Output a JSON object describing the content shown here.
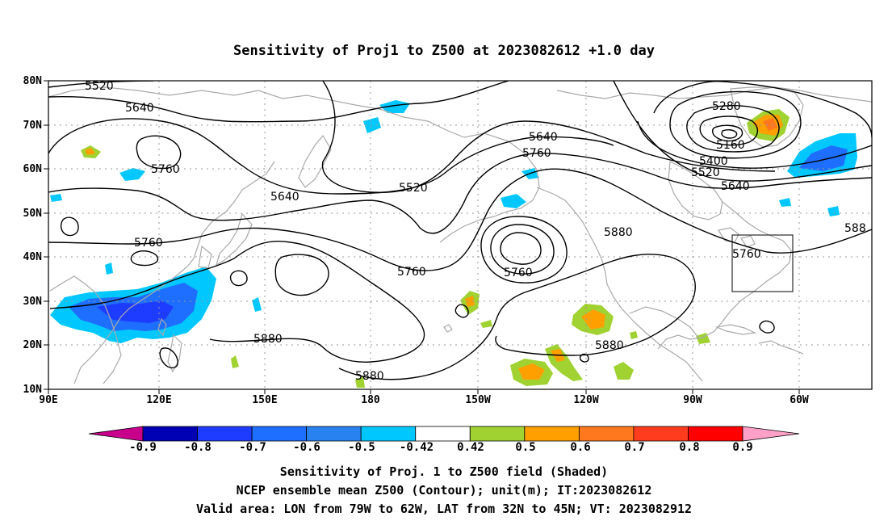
{
  "title": "Sensitivity of Proj1 to Z500 at 2023082612 +1.0 day",
  "lon_labels": [
    "90E",
    "120E",
    "150E",
    "180",
    "150W",
    "120W",
    "90W",
    "60W"
  ],
  "lat_labels": [
    "80N",
    "70N",
    "60N",
    "50N",
    "40N",
    "30N",
    "20N",
    "10N"
  ],
  "contour_labels": [
    "5520",
    "5640",
    "5760",
    "5640",
    "5760",
    "5520",
    "5640",
    "5760",
    "5760",
    "5760",
    "5880",
    "5880",
    "5880",
    "5880",
    "5280",
    "5160",
    "5400",
    "5520",
    "5640",
    "5760",
    "588"
  ],
  "colorbar": {
    "labels": [
      "-0.9",
      "-0.8",
      "-0.7",
      "-0.6",
      "-0.5",
      "-0.42",
      "0.42",
      "0.5",
      "0.6",
      "0.7",
      "0.8",
      "0.9"
    ],
    "colors": [
      "#0000b4",
      "#1e3cff",
      "#1e6eff",
      "#2882f0",
      "#00c8ff",
      "#ffffff",
      "#a0d232",
      "#ffa000",
      "#ff781e",
      "#ff3c1e",
      "#ff0000"
    ],
    "under_color": "#c8008c",
    "over_color": "#ffa0c8"
  },
  "shading_colors": {
    "neg_strong": "#1e6eff",
    "neg_weak": "#00c8ff",
    "neg_darkest": "#1e3cff",
    "pos_weak": "#a0d232",
    "pos_mid": "#ffa000",
    "pos_strong": "#ff781e"
  },
  "caption": [
    "Sensitivity of Proj. 1 to Z500 field (Shaded)",
    "NCEP ensemble mean Z500 (Contour); unit(m); IT:2023082612",
    "Valid area: LON from 79W to 62W, LAT from 32N to 45N; VT: 2023082912"
  ],
  "valid_area": {
    "lon_min": -79,
    "lon_max": -62,
    "lat_min": 32,
    "lat_max": 45
  }
}
